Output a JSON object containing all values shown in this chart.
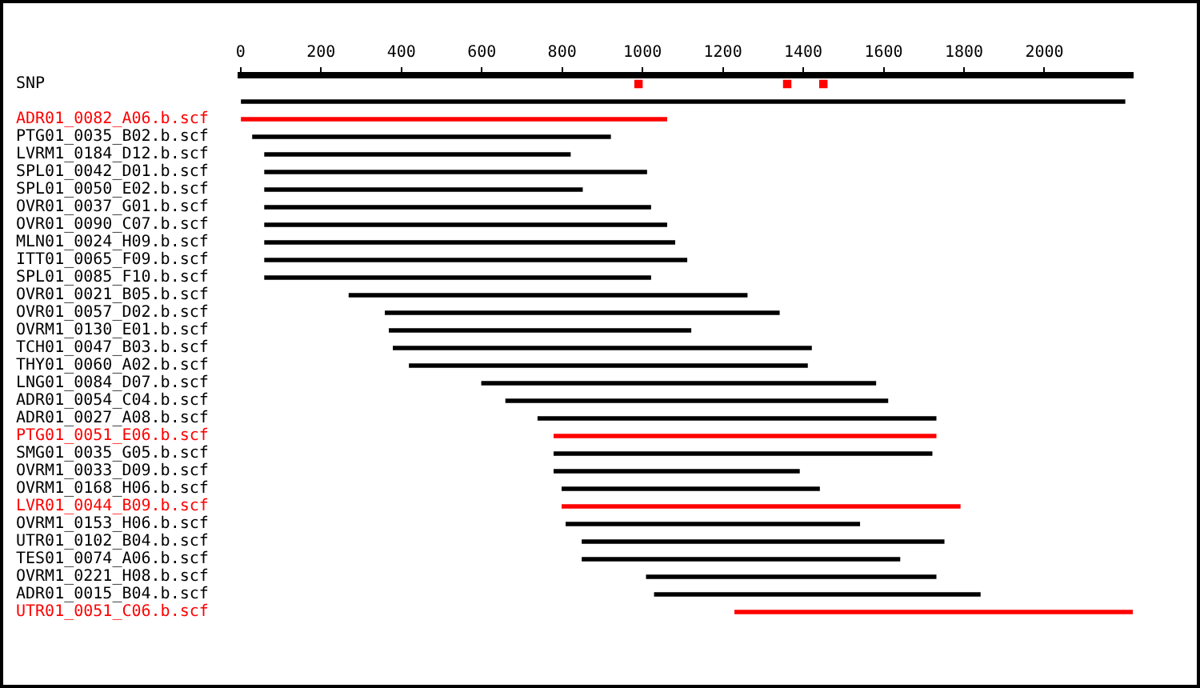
{
  "chart_data": {
    "type": "bar",
    "orientation": "horizontal",
    "categories": [
      "SNP",
      null,
      "ADR01_0082_A06.b.scf",
      "PTG01_0035_B02.b.scf",
      "LVRM1_0184_D12.b.scf",
      "SPL01_0042_D01.b.scf",
      "SPL01_0050_E02.b.scf",
      "OVR01_0037_G01.b.scf",
      "OVR01_0090_C07.b.scf",
      "MLN01_0024_H09.b.scf",
      "ITT01_0065_F09.b.scf",
      "SPL01_0085_F10.b.scf",
      "OVR01_0021_B05.b.scf",
      "OVR01_0057_D02.b.scf",
      "OVRM1_0130_E01.b.scf",
      "TCH01_0047_B03.b.scf",
      "THY01_0060_A02.b.scf",
      "LNG01_0084_D07.b.scf",
      "ADR01_0054_C04.b.scf",
      "ADR01_0027_A08.b.scf",
      "PTG01_0051_E06.b.scf",
      "SMG01_0035_G05.b.scf",
      "OVRM1_0033_D09.b.scf",
      "OVRM1_0168_H06.b.scf",
      "LVR01_0044_B09.b.scf",
      "OVRM1_0153_H06.b.scf",
      "UTR01_0102_B04.b.scf",
      "TES01_0074_A06.b.scf",
      "OVRM1_0221_H08.b.scf",
      "ADR01_0015_B04.b.scf",
      "UTR01_0051_C06.b.scf"
    ],
    "series": [
      {
        "base": [
          null,
          0,
          0,
          30,
          60,
          60,
          60,
          60,
          60,
          60,
          60,
          60,
          270,
          360,
          370,
          380,
          420,
          600,
          660,
          740,
          780,
          780,
          780,
          800,
          800,
          810,
          850,
          850,
          1010,
          1030,
          1230
        ],
        "values": [
          null,
          2200,
          1060,
          890,
          760,
          950,
          790,
          960,
          1000,
          1020,
          1050,
          960,
          990,
          980,
          750,
          1040,
          990,
          980,
          950,
          990,
          950,
          940,
          610,
          640,
          990,
          730,
          900,
          790,
          720,
          810,
          990
        ],
        "colors": [
          "#000000",
          "#000000",
          "#ff0000",
          "#000000",
          "#000000",
          "#000000",
          "#000000",
          "#000000",
          "#000000",
          "#000000",
          "#000000",
          "#000000",
          "#000000",
          "#000000",
          "#000000",
          "#000000",
          "#000000",
          "#000000",
          "#000000",
          "#000000",
          "#ff0000",
          "#000000",
          "#000000",
          "#000000",
          "#ff0000",
          "#000000",
          "#000000",
          "#000000",
          "#000000",
          "#000000",
          "#ff0000"
        ]
      },
      {
        "type": "scatter",
        "color": "#ff0000",
        "values": [
          990,
          null,
          null,
          null,
          null,
          null,
          null,
          null,
          null,
          null,
          null,
          null,
          null,
          null,
          null,
          null,
          null,
          null,
          null,
          null,
          null,
          null,
          null,
          null,
          null,
          null,
          null,
          null,
          null,
          null,
          null
        ]
      },
      {
        "type": "scatter",
        "color": "#ff0000",
        "values": [
          1360,
          null,
          null,
          null,
          null,
          null,
          null,
          null,
          null,
          null,
          null,
          null,
          null,
          null,
          null,
          null,
          null,
          null,
          null,
          null,
          null,
          null,
          null,
          null,
          null,
          null,
          null,
          null,
          null,
          null,
          null
        ]
      },
      {
        "type": "scatter",
        "color": "#ff0000",
        "values": [
          1450,
          null,
          null,
          null,
          null,
          null,
          null,
          null,
          null,
          null,
          null,
          null,
          null,
          null,
          null,
          null,
          null,
          null,
          null,
          null,
          null,
          null,
          null,
          null,
          null,
          null,
          null,
          null,
          null,
          null,
          null
        ]
      }
    ],
    "xlim": [
      0,
      2220
    ],
    "xticks": [
      0,
      200,
      400,
      600,
      800,
      1000,
      1200,
      1400,
      1600,
      1800,
      2000
    ],
    "grid": false,
    "legend": false,
    "marker": "square"
  }
}
